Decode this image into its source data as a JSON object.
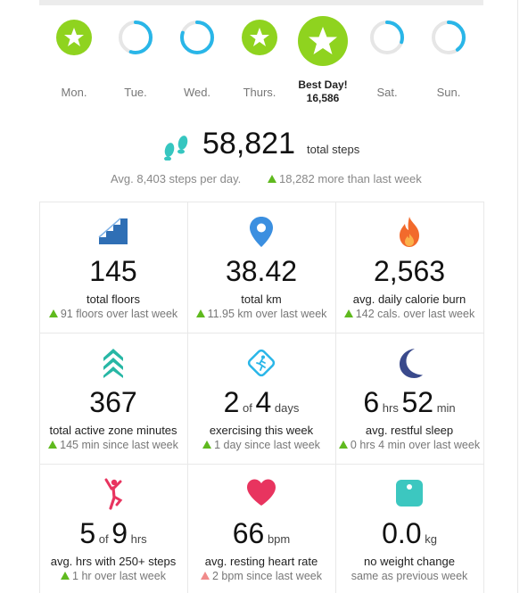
{
  "days": [
    {
      "label": "Mon.",
      "icon": "star-check-icon",
      "status": "goal-met"
    },
    {
      "label": "Tue.",
      "icon": "progress-ring-icon",
      "status": "partial",
      "progress": 0.55
    },
    {
      "label": "Wed.",
      "icon": "progress-ring-icon",
      "status": "partial",
      "progress": 0.8
    },
    {
      "label": "Thurs.",
      "icon": "star-check-icon",
      "status": "goal-met"
    },
    {
      "label": "Best Day!",
      "value": "16,586",
      "icon": "star-check-icon",
      "status": "best"
    },
    {
      "label": "Sat.",
      "icon": "progress-ring-icon",
      "status": "partial",
      "progress": 0.3
    },
    {
      "label": "Sun.",
      "icon": "progress-ring-icon",
      "status": "partial",
      "progress": 0.4
    }
  ],
  "summary": {
    "total_steps": "58,821",
    "total_steps_unit": "total steps",
    "avg_text": "Avg. 8,403 steps per day.",
    "change_text": "18,282 more than last week"
  },
  "stats": {
    "floors": {
      "value": "145",
      "label": "total floors",
      "compare": "91 floors over last week"
    },
    "distance": {
      "value": "38.42",
      "label": "total km",
      "compare": "11.95 km over last week"
    },
    "calories": {
      "value": "2,563",
      "label": "avg. daily calorie burn",
      "compare": "142 cals. over last week"
    },
    "azm": {
      "value": "367",
      "label": "total active zone minutes",
      "compare": "145 min since last week"
    },
    "exercise": {
      "value_a": "2",
      "of": "of",
      "value_b": "4",
      "unit": "days",
      "label": "exercising this week",
      "compare": "1 day since last week"
    },
    "sleep": {
      "hours": "6",
      "hours_unit": "hrs",
      "minutes": "52",
      "minutes_unit": "min",
      "label": "avg. restful sleep",
      "compare": "0 hrs 4 min over last week"
    },
    "hourly": {
      "value_a": "5",
      "of": "of",
      "value_b": "9",
      "unit": "hrs",
      "label": "avg. hrs with 250+ steps",
      "compare": "1 hr over last week"
    },
    "heart": {
      "value": "66",
      "unit": "bpm",
      "label": "avg. resting heart rate",
      "compare": "2 bpm since last week"
    },
    "weight": {
      "value": "0.0",
      "unit": "kg",
      "label": "no weight change",
      "compare": "same as previous week"
    }
  },
  "colors": {
    "goal_green": "#8fd31f",
    "ring_blue": "#29b6e8",
    "up_arrow": "#5fb91e",
    "down_arrow": "#f08a8a",
    "stairs": "#2f6fb5",
    "pin": "#3b8fe0",
    "flame": "#f26a2c",
    "azm": "#27b7a5",
    "moon": "#3a4a8c",
    "heart": "#e8345f",
    "hourly": "#e8345f",
    "scale": "#3cc7c0"
  }
}
